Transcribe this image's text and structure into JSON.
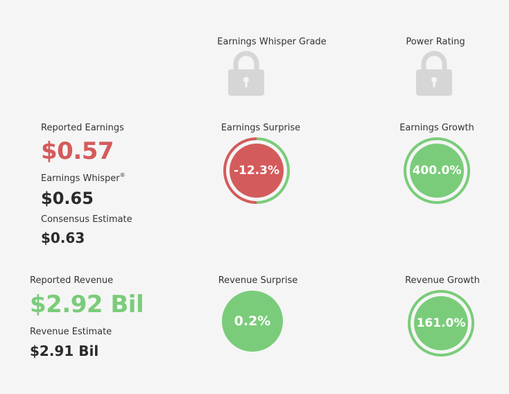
{
  "grade": {
    "whisper_grade_label": "Earnings Whisper Grade",
    "power_rating_label": "Power Rating",
    "lock_icon": "lock-icon"
  },
  "earnings": {
    "reported_label": "Reported Earnings",
    "reported_value": "$0.57",
    "whisper_label": "Earnings Whisper",
    "whisper_mark": "®",
    "whisper_value": "$0.65",
    "consensus_label": "Consensus Estimate",
    "consensus_value": "$0.63",
    "surprise_label": "Earnings Surprise",
    "surprise_value": "-12.3%",
    "growth_label": "Earnings Growth",
    "growth_value": "400.0%"
  },
  "revenue": {
    "reported_label": "Reported Revenue",
    "reported_value": "$2.92 Bil",
    "estimate_label": "Revenue Estimate",
    "estimate_value": "$2.91 Bil",
    "surprise_label": "Revenue Surprise",
    "surprise_value": "0.2%",
    "growth_label": "Revenue Growth",
    "growth_value": "161.0%"
  },
  "colors": {
    "red": "#d45b5b",
    "green": "#7acc7a",
    "lock_gray": "#d6d6d6",
    "background": "#f5f5f5"
  }
}
